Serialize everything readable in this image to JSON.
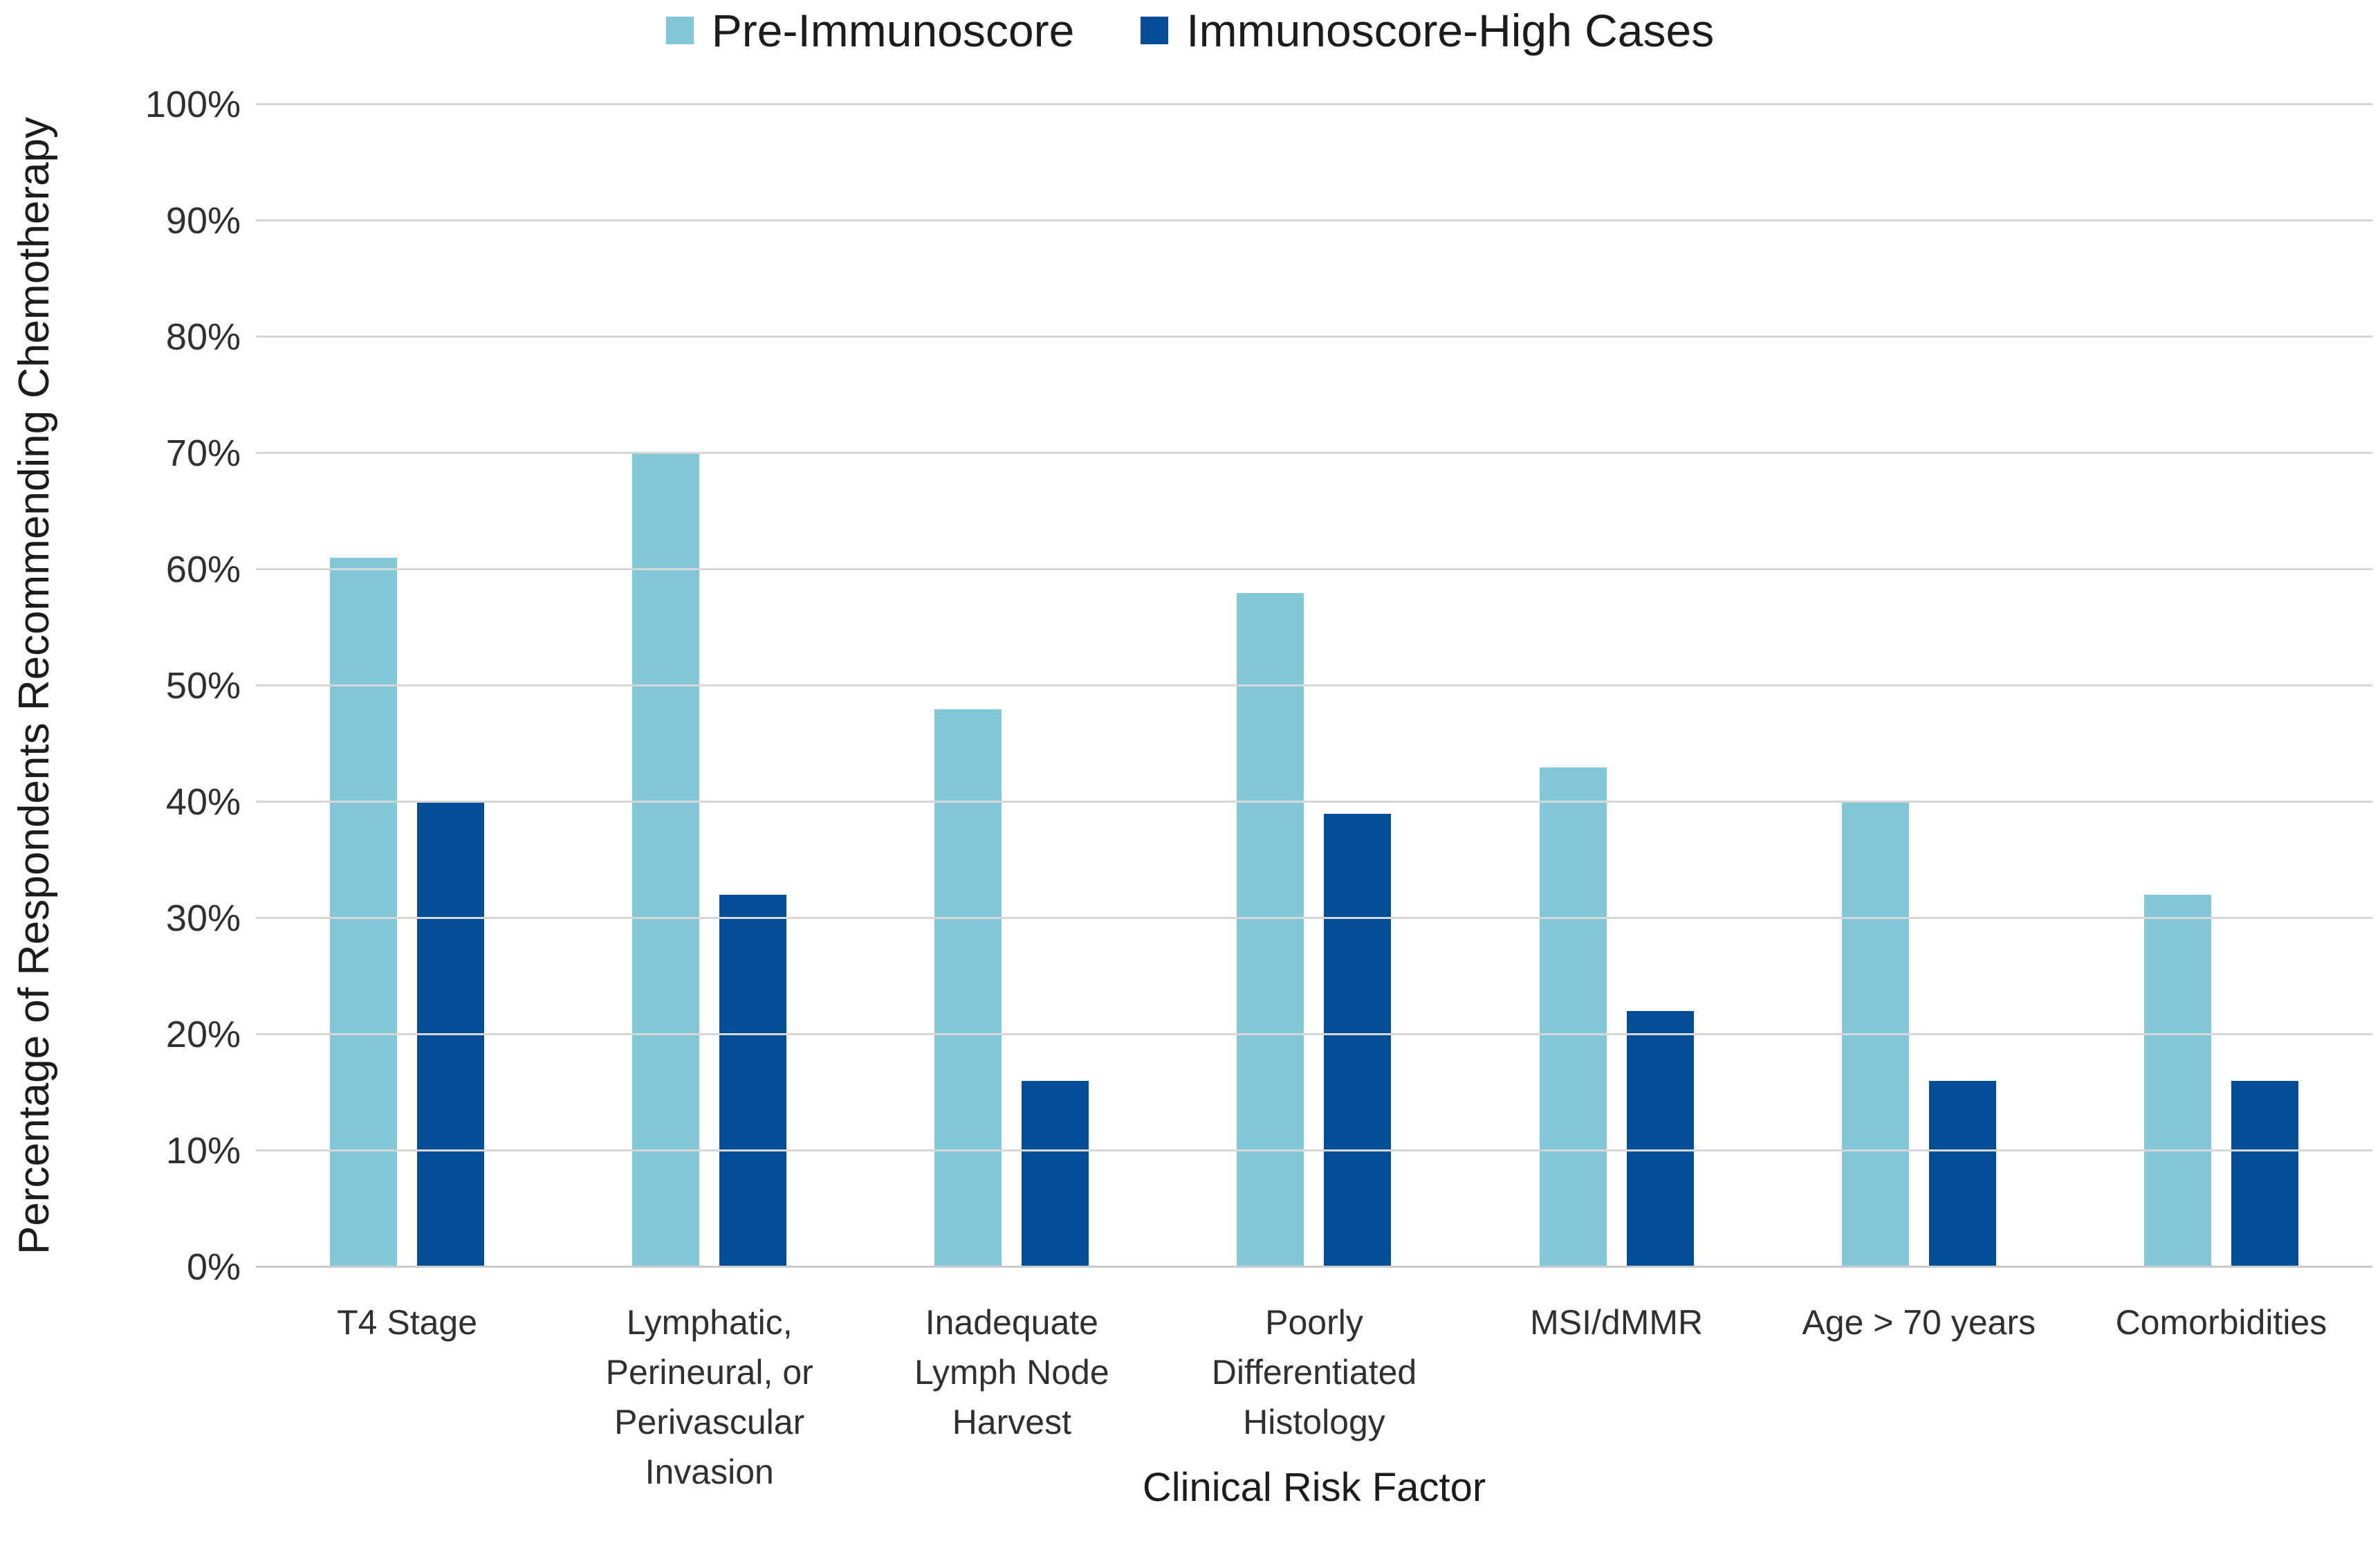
{
  "legend": {
    "items": [
      {
        "label": "Pre-Immunoscore",
        "color": "#82C8D6"
      },
      {
        "label": "Immunoscore-High Cases",
        "color": "#034E96"
      }
    ]
  },
  "y_axis": {
    "title": "Percentage of Respondents Recommending Chemotherapy",
    "ticks": [
      "0%",
      "10%",
      "20%",
      "30%",
      "40%",
      "50%",
      "60%",
      "70%",
      "80%",
      "90%",
      "100%"
    ]
  },
  "x_axis": {
    "title": "Clinical Risk Factor"
  },
  "chart_data": {
    "type": "bar",
    "categories": [
      "T4 Stage",
      "Lymphatic, Perineural, or Perivascular Invasion",
      "Inadequate Lymph Node Harvest",
      "Poorly Differentiated Histology",
      "MSI/dMMR",
      "Age > 70 years",
      "Comorbidities"
    ],
    "series": [
      {
        "name": "Pre-Immunoscore",
        "color": "#82C8D6",
        "values": [
          61,
          70,
          48,
          58,
          43,
          40,
          32
        ]
      },
      {
        "name": "Immunoscore-High Cases",
        "color": "#034E96",
        "values": [
          40,
          32,
          16,
          39,
          22,
          16,
          16
        ]
      }
    ],
    "title": "",
    "xlabel": "Clinical Risk Factor",
    "ylabel": "Percentage of Respondents Recommending Chemotherapy",
    "ylim": [
      0,
      100
    ],
    "ytick_step": 10,
    "grid": true,
    "legend_position": "top"
  }
}
